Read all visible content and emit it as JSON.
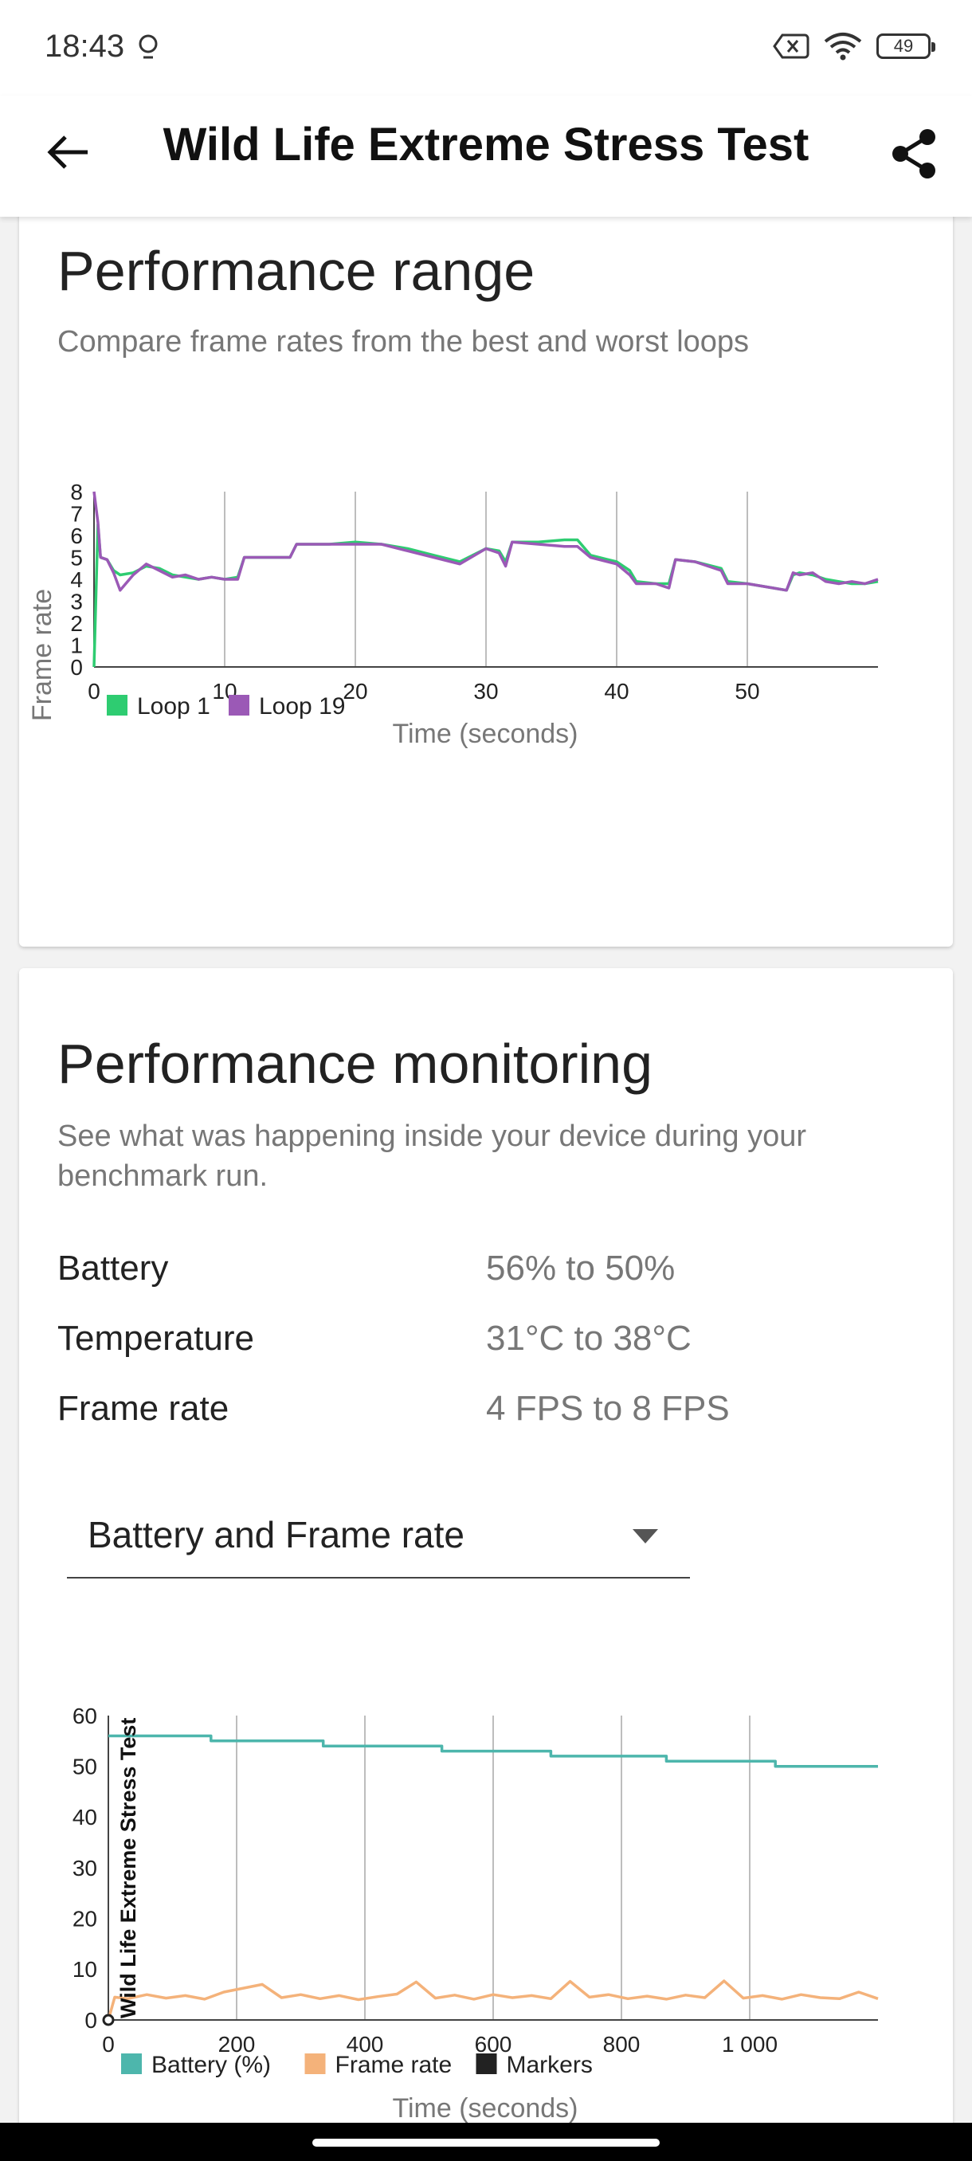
{
  "status_bar": {
    "time": "18:43",
    "battery_level": "49",
    "icons": [
      "lens-icon",
      "no-sim-icon",
      "wifi-icon",
      "battery-icon"
    ]
  },
  "app_bar": {
    "title": "Wild Life Extreme Stress Test",
    "back_icon": "arrow-left-icon",
    "share_icon": "share-icon"
  },
  "performance_range": {
    "title": "Performance range",
    "subtitle": "Compare frame rates from the best and worst loops",
    "chart_data": {
      "type": "line",
      "xlabel": "Time (seconds)",
      "ylabel": "Frame rate",
      "xlim": [
        0,
        60
      ],
      "ylim": [
        0,
        8
      ],
      "xticks": [
        "0",
        "10",
        "20",
        "30",
        "40",
        "50"
      ],
      "yticks": [
        "0",
        "1",
        "2",
        "3",
        "4",
        "5",
        "6",
        "7",
        "8"
      ],
      "grid": "vertical",
      "legend_position": "bottom-left",
      "series": [
        {
          "name": "Loop 1",
          "color": "#2ecc71",
          "x": [
            0,
            0.3,
            0.5,
            1,
            1.5,
            2,
            3,
            4,
            5,
            6,
            7,
            8,
            9,
            10,
            11,
            11.5,
            15,
            15.5,
            18,
            20,
            22,
            24,
            26,
            28,
            30,
            31,
            31.5,
            32,
            34,
            36,
            37,
            38,
            40,
            41,
            41.5,
            43,
            44,
            44.5,
            46,
            48,
            48.5,
            50,
            52,
            53,
            53.5,
            54,
            55,
            56,
            57,
            58,
            59,
            60
          ],
          "y": [
            0,
            6.5,
            5.0,
            4.9,
            4.4,
            4.2,
            4.3,
            4.6,
            4.5,
            4.2,
            4.1,
            4.0,
            4.1,
            4.0,
            4.1,
            5.0,
            5.0,
            5.6,
            5.6,
            5.7,
            5.6,
            5.4,
            5.1,
            4.8,
            5.4,
            5.3,
            4.8,
            5.7,
            5.7,
            5.8,
            5.8,
            5.1,
            4.8,
            4.4,
            3.9,
            3.8,
            3.8,
            4.9,
            4.8,
            4.5,
            3.9,
            3.8,
            3.6,
            3.5,
            4.2,
            4.3,
            4.2,
            4.0,
            3.9,
            3.8,
            3.8,
            3.9
          ]
        },
        {
          "name": "Loop 19",
          "color": "#9b59b6",
          "x": [
            0,
            0.3,
            0.5,
            1,
            1.5,
            2,
            3,
            4,
            5,
            6,
            7,
            8,
            9,
            10,
            11,
            11.5,
            15,
            15.5,
            18,
            20,
            22,
            24,
            26,
            28,
            30,
            31,
            31.5,
            32,
            34,
            36,
            37,
            38,
            40,
            41,
            41.5,
            43,
            44,
            44.5,
            46,
            48,
            48.5,
            50,
            52,
            53,
            53.5,
            54,
            55,
            56,
            57,
            58,
            59,
            60
          ],
          "y": [
            8.0,
            6.6,
            5.0,
            4.9,
            4.3,
            3.5,
            4.2,
            4.7,
            4.4,
            4.1,
            4.2,
            4.0,
            4.1,
            4.0,
            4.0,
            5.0,
            5.0,
            5.6,
            5.6,
            5.6,
            5.6,
            5.3,
            5.0,
            4.7,
            5.4,
            5.2,
            4.6,
            5.7,
            5.6,
            5.5,
            5.5,
            5.0,
            4.7,
            4.2,
            3.8,
            3.8,
            3.6,
            4.9,
            4.8,
            4.4,
            3.8,
            3.8,
            3.6,
            3.5,
            4.3,
            4.2,
            4.3,
            3.9,
            3.8,
            3.9,
            3.8,
            4.0
          ]
        }
      ]
    }
  },
  "performance_monitoring": {
    "title": "Performance monitoring",
    "subtitle": "See what was happening inside your device during your benchmark run.",
    "metrics": [
      {
        "label": "Battery",
        "value": "56% to 50%"
      },
      {
        "label": "Temperature",
        "value": "31°C to 38°C"
      },
      {
        "label": "Frame rate",
        "value": "4 FPS to 8 FPS"
      }
    ],
    "dropdown": {
      "selected": "Battery and Frame rate",
      "icon": "dropdown-triangle-icon"
    },
    "chart_data": {
      "type": "line",
      "xlabel": "Time (seconds)",
      "marker_label": "Wild Life Extreme Stress Test",
      "xlim": [
        0,
        1200
      ],
      "ylim": [
        0,
        60
      ],
      "xticks": [
        "0",
        "200",
        "400",
        "600",
        "800",
        "1 000"
      ],
      "yticks": [
        "0",
        "10",
        "20",
        "30",
        "40",
        "50",
        "60"
      ],
      "grid": "vertical",
      "legend_position": "bottom-left",
      "series": [
        {
          "name": "Battery (%)",
          "color": "#4db6ac",
          "x": [
            0,
            160,
            160,
            335,
            335,
            520,
            520,
            690,
            690,
            870,
            870,
            1040,
            1040,
            1200
          ],
          "y": [
            56,
            56,
            55,
            55,
            54,
            54,
            53,
            53,
            52,
            52,
            51,
            51,
            50,
            50
          ]
        },
        {
          "name": "Frame rate",
          "color": "#f4b27a",
          "x": [
            0,
            10,
            30,
            60,
            90,
            120,
            150,
            180,
            240,
            270,
            300,
            330,
            360,
            390,
            420,
            450,
            480,
            510,
            540,
            570,
            600,
            630,
            660,
            690,
            720,
            750,
            780,
            810,
            840,
            870,
            900,
            930,
            960,
            990,
            1020,
            1050,
            1080,
            1110,
            1140,
            1170,
            1200
          ],
          "y": [
            0,
            4.5,
            4.2,
            5.0,
            4.3,
            4.8,
            4.1,
            5.5,
            7.0,
            4.4,
            5.0,
            4.2,
            4.8,
            4.0,
            4.6,
            5.1,
            7.5,
            4.3,
            4.9,
            4.1,
            5.0,
            4.4,
            4.8,
            4.2,
            7.6,
            4.5,
            5.0,
            4.2,
            4.7,
            4.1,
            4.9,
            4.4,
            7.7,
            4.3,
            4.8,
            4.1,
            5.0,
            4.4,
            4.2,
            5.5,
            4.2
          ]
        },
        {
          "name": "Markers",
          "color": "#222222",
          "x": [
            0
          ],
          "y": [
            0
          ]
        }
      ]
    }
  }
}
